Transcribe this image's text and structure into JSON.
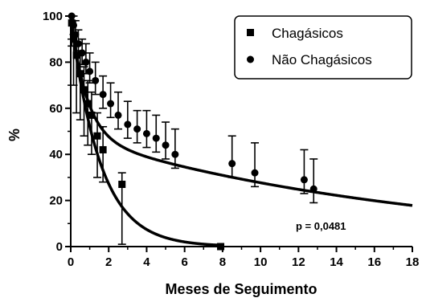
{
  "chart_data": {
    "type": "scatter",
    "title": "",
    "xlabel": "Meses de Seguimento",
    "ylabel": "%",
    "xlim": [
      0,
      18
    ],
    "ylim": [
      0,
      100
    ],
    "xticks": [
      "0",
      "2",
      "4",
      "6",
      "8",
      "10",
      "12",
      "14",
      "16",
      "18"
    ],
    "yticks": [
      "0",
      "20",
      "40",
      "60",
      "80",
      "100"
    ],
    "grid": false,
    "legend_position": "top-right",
    "series": [
      {
        "name": "Chagásicos",
        "marker": "square",
        "x": [
          0.05,
          0.15,
          0.3,
          0.5,
          0.7,
          0.9,
          1.1,
          1.4,
          1.7,
          2.7,
          7.9
        ],
        "y": [
          97,
          90,
          83,
          75,
          68,
          62,
          57,
          48,
          42,
          27,
          0
        ],
        "error_low": [
          10,
          20,
          25,
          20,
          20,
          18,
          17,
          18,
          14,
          26,
          0
        ],
        "error_high": [
          3,
          8,
          6,
          10,
          10,
          10,
          10,
          10,
          10,
          5,
          0
        ],
        "fit": {
          "model": "exponential_decay",
          "k": 0.65
        }
      },
      {
        "name": "Não Chagásicos",
        "marker": "circle",
        "x": [
          0.05,
          0.15,
          0.25,
          0.4,
          0.6,
          0.8,
          1.0,
          1.3,
          1.7,
          2.1,
          2.5,
          3.0,
          3.5,
          4.0,
          4.5,
          5.0,
          5.5,
          8.5,
          9.7,
          12.3,
          12.8
        ],
        "y": [
          100,
          96,
          92,
          88,
          84,
          80,
          76,
          72,
          66,
          62,
          57,
          53,
          51,
          49,
          47,
          44,
          40,
          36,
          32,
          29,
          25
        ],
        "error_low": [
          0,
          4,
          5,
          5,
          5,
          5,
          5,
          6,
          6,
          6,
          6,
          6,
          6,
          6,
          6,
          6,
          6,
          6,
          6,
          6,
          6
        ],
        "error_high": [
          0,
          4,
          6,
          6,
          6,
          8,
          8,
          8,
          8,
          9,
          10,
          10,
          8,
          10,
          10,
          10,
          11,
          12,
          13,
          13,
          13
        ],
        "fit": {
          "model": "two_phase_decay",
          "span1": 52,
          "k1": 1.2,
          "span2": 48,
          "k2": 0.055
        }
      }
    ],
    "annotations": [
      {
        "text": "p = 0,0481",
        "x": 13.4,
        "y": 8
      }
    ]
  }
}
